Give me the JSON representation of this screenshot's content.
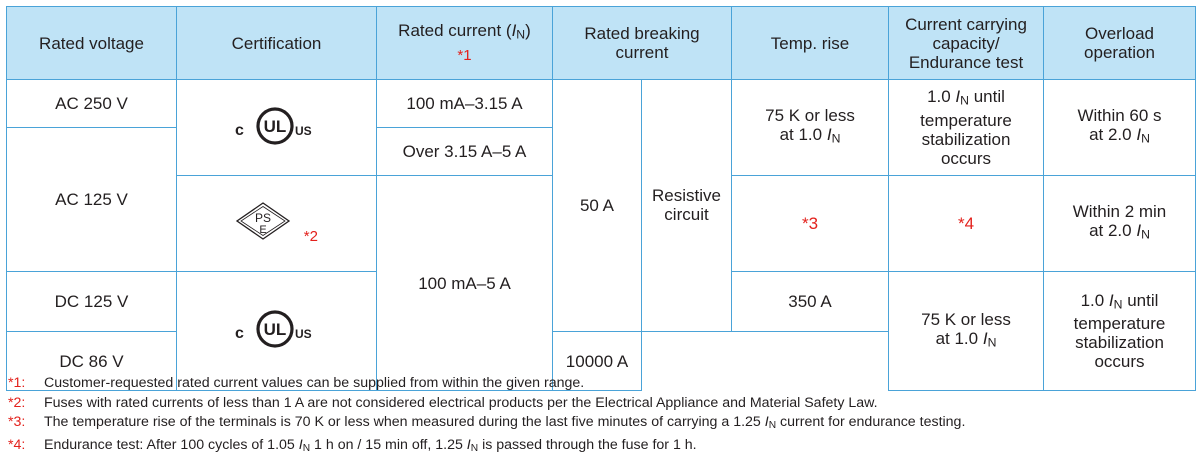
{
  "table": {
    "headers": {
      "rated_voltage": "Rated voltage",
      "certification": "Certification",
      "rated_current": "Rated current (",
      "rated_current_symbol": "I",
      "rated_current_sub": "N",
      "rated_current_close": ")",
      "rated_current_note": "*1",
      "breaking_current_line1": "Rated breaking",
      "breaking_current_line2": "current",
      "temp_rise": "Temp. rise",
      "carrying_line1": "Current carrying",
      "carrying_line2": "capacity/",
      "carrying_line3": "Endurance test",
      "overload_line1": "Overload",
      "overload_line2": "operation"
    },
    "voltages": [
      "AC 250 V",
      "AC 125 V",
      "DC 125 V",
      "DC 86 V"
    ],
    "currents": {
      "range_a": "100 mA–3.15 A",
      "range_b": "Over 3.15 A–5 A",
      "range_c": "100 mA–5 A"
    },
    "breaking": {
      "ac": "50 A",
      "dc125": "350 A",
      "dc86": "10000 A",
      "resistive_line1": "Resistive",
      "resistive_line2": "circuit"
    },
    "temp": {
      "line1": "75 K or less",
      "line2_prefix": "at 1.0 ",
      "symbol": "I",
      "sub": "N",
      "pse_note": "*3"
    },
    "carrying": {
      "line1_prefix": "1.0 ",
      "symbol": "I",
      "sub": "N",
      "line1_suffix": " until",
      "line2": "temperature",
      "line3": "stabilization",
      "line4": "occurs",
      "pse_note": "*4"
    },
    "overload": {
      "ul_line1": "Within 60 s",
      "pse_line1": "Within 2 min",
      "line2_prefix": "at 2.0 ",
      "symbol": "I",
      "sub": "N"
    },
    "certs": {
      "ul_c": "c",
      "ul_mark": "UL",
      "ul_us": "US",
      "pse_top": "PS",
      "pse_bottom": "E",
      "pse_note": "*2"
    }
  },
  "notes": [
    {
      "mark": "*1:",
      "text": "Customer-requested rated current values can be supplied from within the given range."
    },
    {
      "mark": "*2:",
      "text": "Fuses with rated currents of less than 1 A are not considered electrical products per the Electrical Appliance and Material Safety Law."
    },
    {
      "mark": "*3:",
      "text_a": "The temperature rise of the terminals is 70 K or less when measured during the last five minutes of carrying a 1.25 ",
      "symbol": "I",
      "sub": "N",
      "text_b": " current for endurance testing."
    },
    {
      "mark": "*4:",
      "text_a": "Endurance test: After 100 cycles of 1.05 ",
      "symbol": "I",
      "sub": "N",
      "text_b": " 1 h on / 15 min off, 1.25 ",
      "symbol2": "I",
      "sub2": "N",
      "text_c": " is passed through the fuse for 1 h."
    }
  ],
  "colors": {
    "border": "#4aa3d8",
    "header_bg": "#bfe3f6",
    "note_red": "#e3211c"
  }
}
